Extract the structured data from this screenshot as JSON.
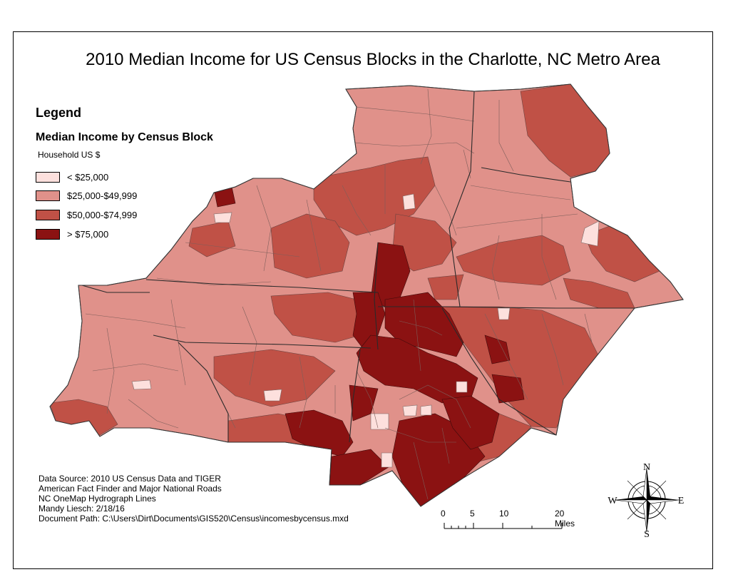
{
  "title": "2010 Median Income for US Census Blocks in the Charlotte, NC Metro Area",
  "legend": {
    "heading": "Legend",
    "subtitle": "Median Income by Census Block",
    "unit": "Household US $",
    "classes": [
      {
        "label": "< $25,000",
        "color": "#fde0dd"
      },
      {
        "label": "$25,000-$49,999",
        "color": "#e0918a"
      },
      {
        "label": "$50,000-$74,999",
        "color": "#c05146"
      },
      {
        "label": "> $75,000",
        "color": "#8b1212"
      }
    ]
  },
  "credits": [
    "Data Source: 2010 US Census Data and TIGER",
    "American Fact Finder and Major National Roads",
    "NC OneMap Hydrograph Lines",
    "Mandy Liesch: 2/18/16",
    "Document Path: C:\\Users\\Dirt\\Documents\\GIS520\\Census\\incomesbycensus.mxd"
  ],
  "scale_bar": {
    "labels": [
      "0",
      "5",
      "10",
      "20 Miles"
    ]
  },
  "compass": {
    "n": "N",
    "e": "E",
    "s": "S",
    "w": "W"
  }
}
